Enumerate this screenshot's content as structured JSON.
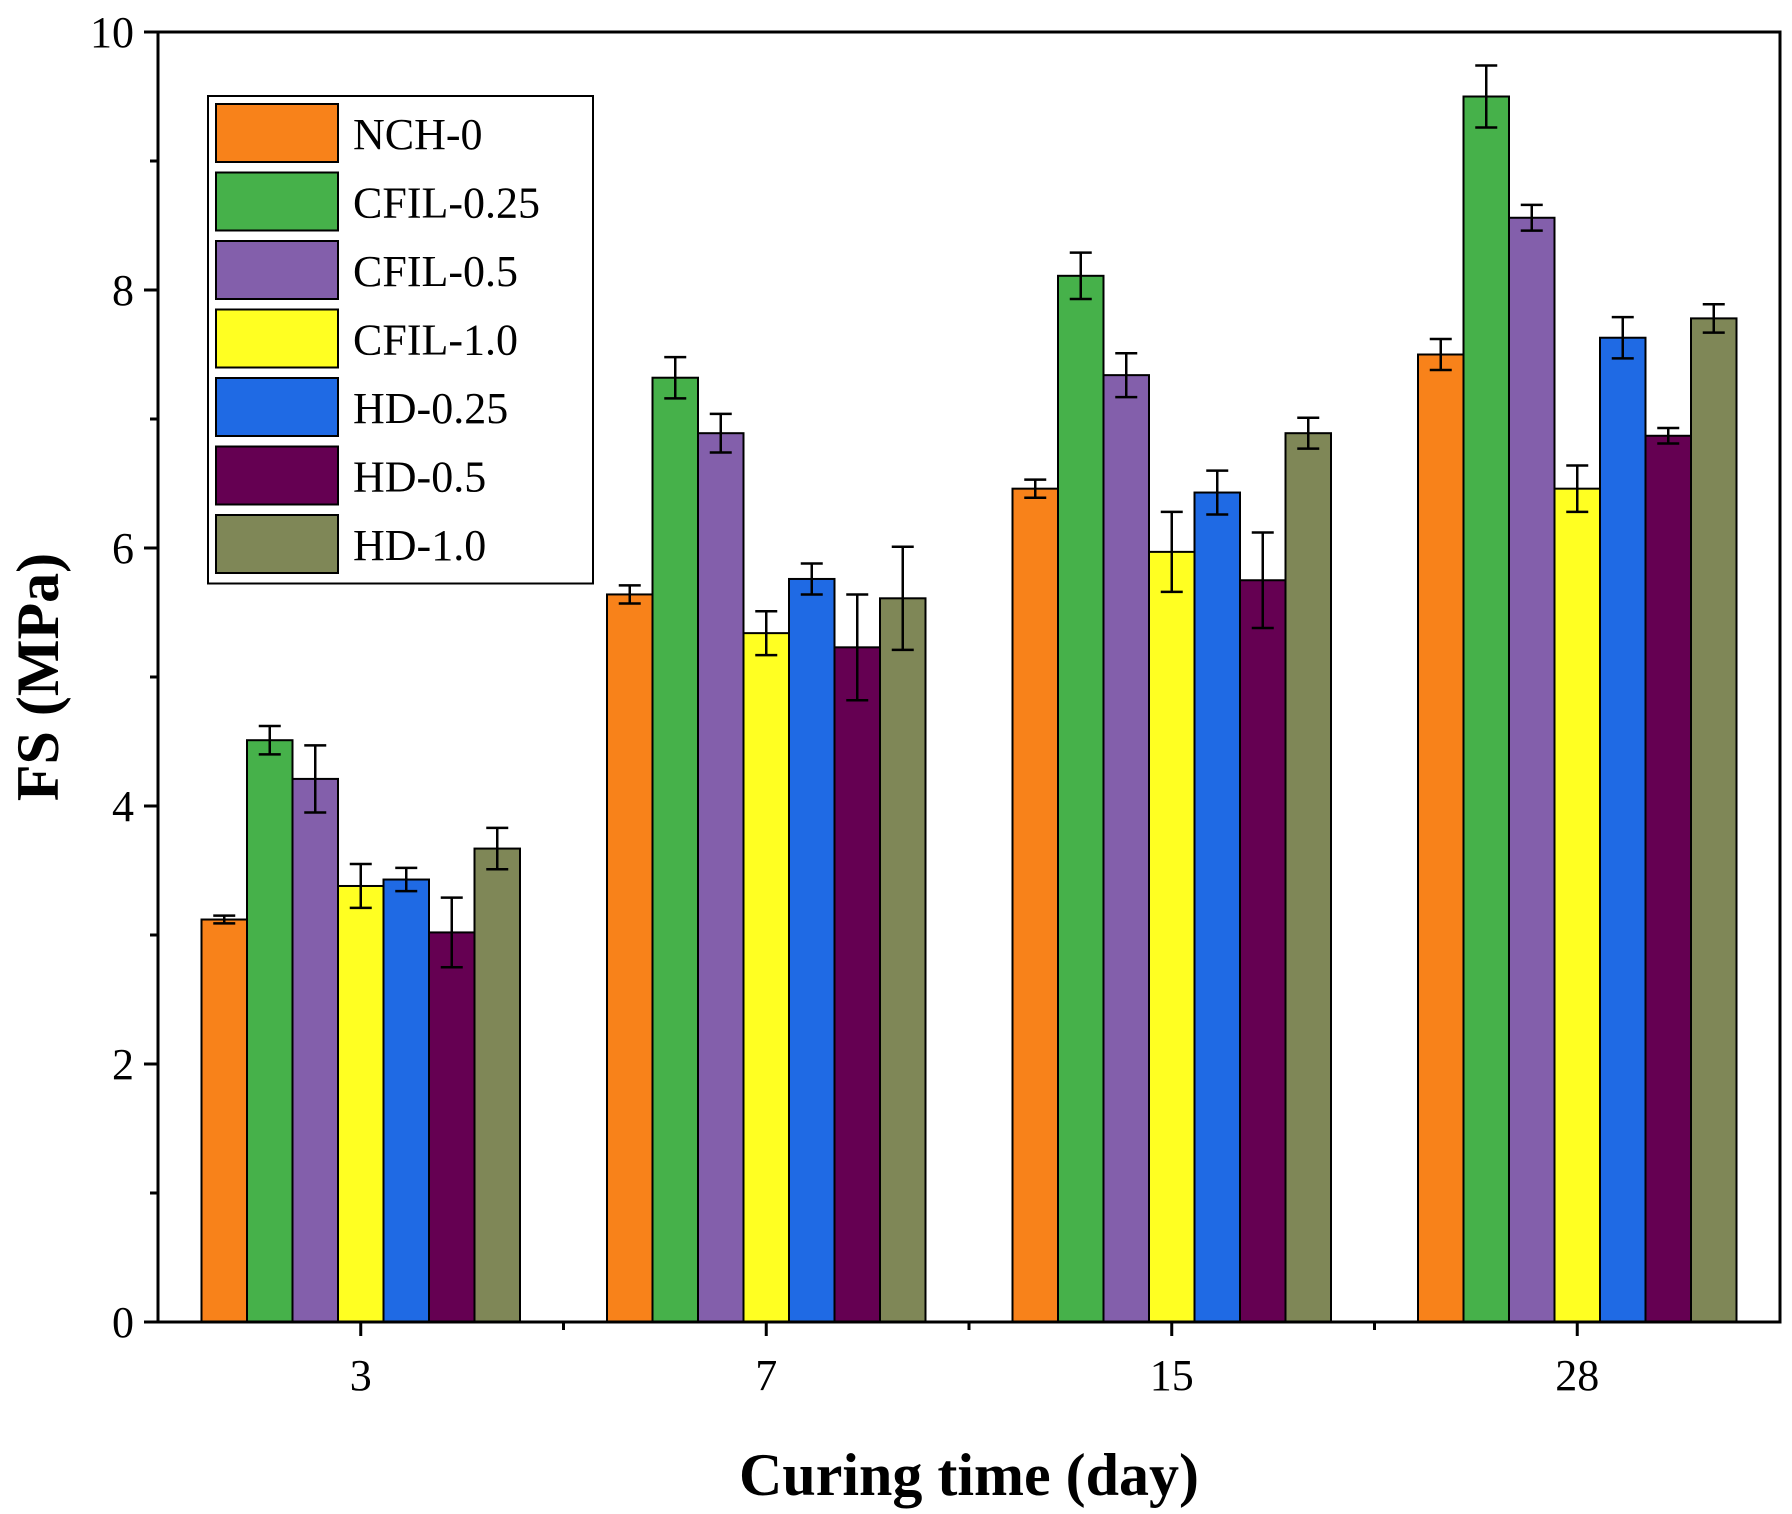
{
  "chart_data": {
    "type": "bar",
    "title": "",
    "xlabel": "Curing time (day)",
    "ylabel": "FS (MPa)",
    "ylim": [
      0,
      10
    ],
    "yticks": [
      "0",
      "2",
      "4",
      "6",
      "8",
      "10"
    ],
    "categories": [
      "3",
      "7",
      "15",
      "28"
    ],
    "grid": false,
    "legend_position": "top-left",
    "error_bars": true,
    "series": [
      {
        "name": "NCH-0",
        "color": "#f8821a",
        "values": [
          3.12,
          5.64,
          6.46,
          7.5
        ],
        "errors": [
          0.03,
          0.07,
          0.07,
          0.12
        ]
      },
      {
        "name": "CFIL-0.25",
        "color": "#46b14a",
        "values": [
          4.51,
          7.32,
          8.11,
          9.5
        ],
        "errors": [
          0.11,
          0.16,
          0.18,
          0.24
        ]
      },
      {
        "name": "CFIL-0.5",
        "color": "#835fab",
        "values": [
          4.21,
          6.89,
          7.34,
          8.56
        ],
        "errors": [
          0.26,
          0.15,
          0.17,
          0.1
        ]
      },
      {
        "name": "CFIL-1.0",
        "color": "#ffff22",
        "values": [
          3.38,
          5.34,
          5.97,
          6.46
        ],
        "errors": [
          0.17,
          0.17,
          0.31,
          0.18
        ]
      },
      {
        "name": "HD-0.25",
        "color": "#1f6ae4",
        "values": [
          3.43,
          5.76,
          6.43,
          7.63
        ],
        "errors": [
          0.09,
          0.12,
          0.17,
          0.16
        ]
      },
      {
        "name": "HD-0.5",
        "color": "#650052",
        "values": [
          3.02,
          5.23,
          5.75,
          6.87
        ],
        "errors": [
          0.27,
          0.41,
          0.37,
          0.06
        ]
      },
      {
        "name": "HD-1.0",
        "color": "#7f8757",
        "values": [
          3.67,
          5.61,
          6.89,
          7.78
        ],
        "errors": [
          0.16,
          0.4,
          0.12,
          0.11
        ]
      }
    ]
  }
}
